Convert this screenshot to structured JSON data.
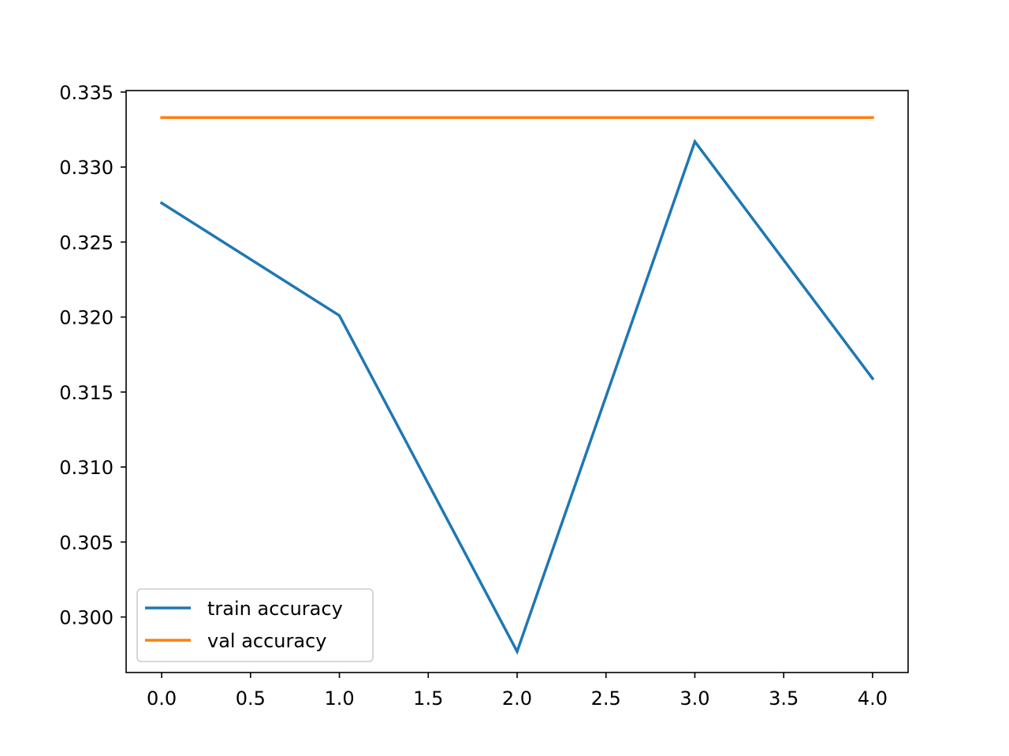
{
  "chart_data": {
    "type": "line",
    "title": "",
    "xlabel": "",
    "ylabel": "",
    "xlim": [
      -0.2,
      4.2
    ],
    "ylim": [
      0.2963,
      0.3351
    ],
    "xticks": [
      0.0,
      0.5,
      1.0,
      1.5,
      2.0,
      2.5,
      3.0,
      3.5,
      4.0
    ],
    "yticks": [
      0.3,
      0.305,
      0.31,
      0.315,
      0.32,
      0.325,
      0.33,
      0.335
    ],
    "xtick_labels": [
      "0.0",
      "0.5",
      "1.0",
      "1.5",
      "2.0",
      "2.5",
      "3.0",
      "3.5",
      "4.0"
    ],
    "ytick_labels": [
      "0.300",
      "0.305",
      "0.310",
      "0.315",
      "0.320",
      "0.325",
      "0.330",
      "0.335"
    ],
    "x": [
      0,
      1,
      2,
      3,
      4
    ],
    "series": [
      {
        "name": "train accuracy",
        "color": "#1f77b4",
        "values": [
          0.3276,
          0.3201,
          0.2977,
          0.3317,
          0.3159
        ]
      },
      {
        "name": "val accuracy",
        "color": "#ff7f0e",
        "values": [
          0.3333,
          0.3333,
          0.3333,
          0.3333,
          0.3333
        ]
      }
    ],
    "grid": false,
    "legend_position": "lower-left"
  }
}
